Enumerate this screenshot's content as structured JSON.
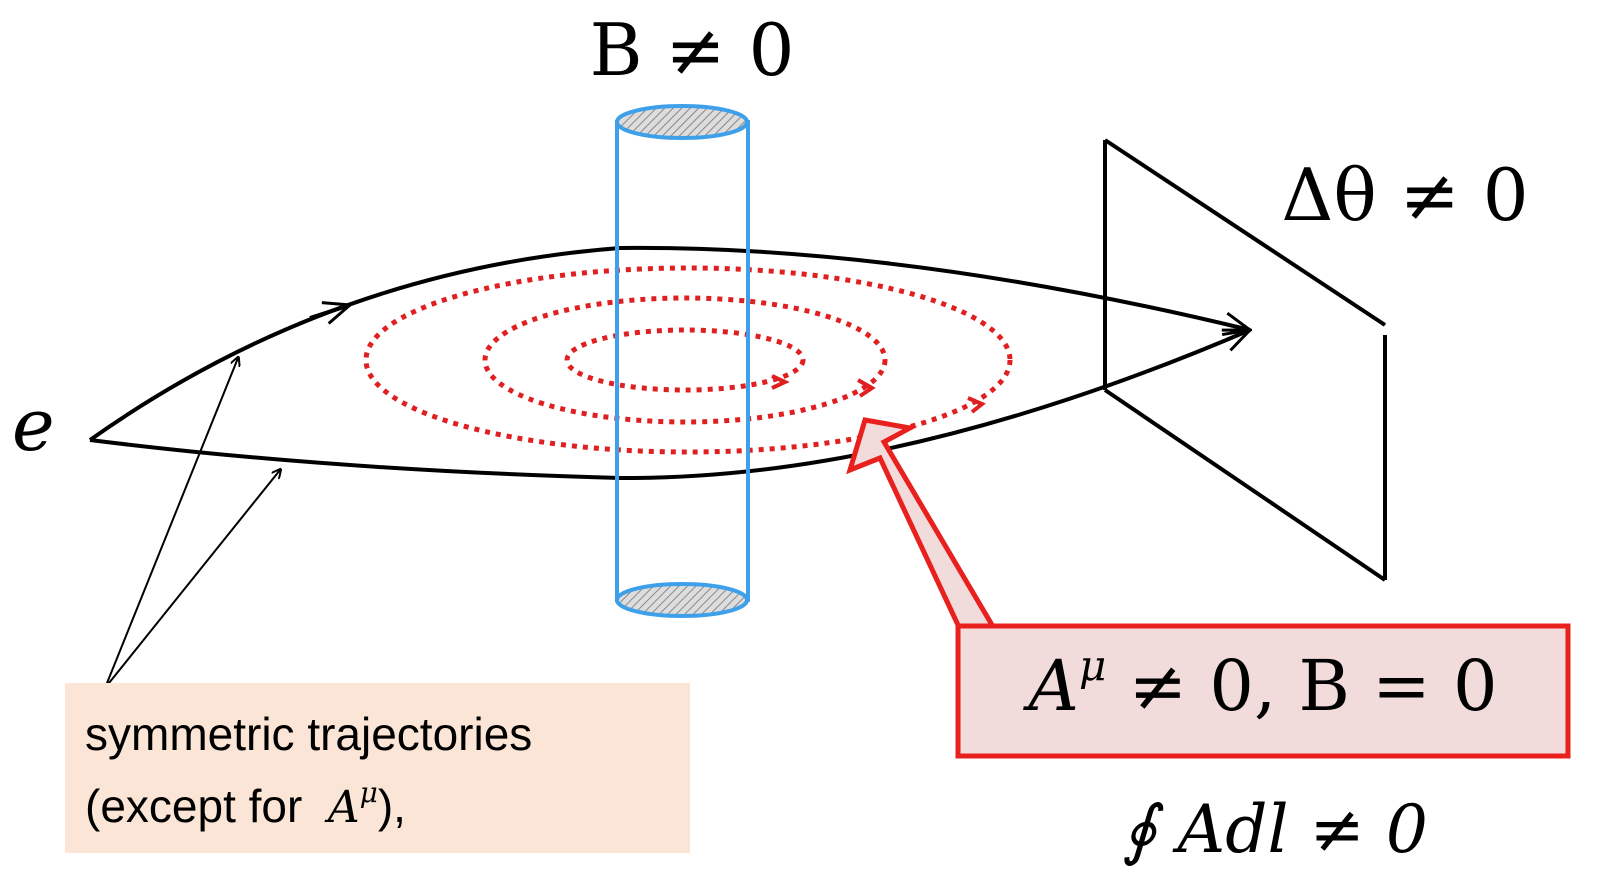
{
  "labels": {
    "field": "B ≠ 0",
    "phase": "Δθ ≠ 0",
    "particle": "e",
    "potential": {
      "base": "A",
      "sup": "μ",
      "rest": " ≠ 0, B = 0"
    },
    "integral": "∮ Adl ≠ 0"
  },
  "note": {
    "line1": "symmetric trajectories",
    "line2": {
      "text": "(except for  ",
      "base": "A",
      "sup": "μ",
      "end": "),"
    }
  }
}
